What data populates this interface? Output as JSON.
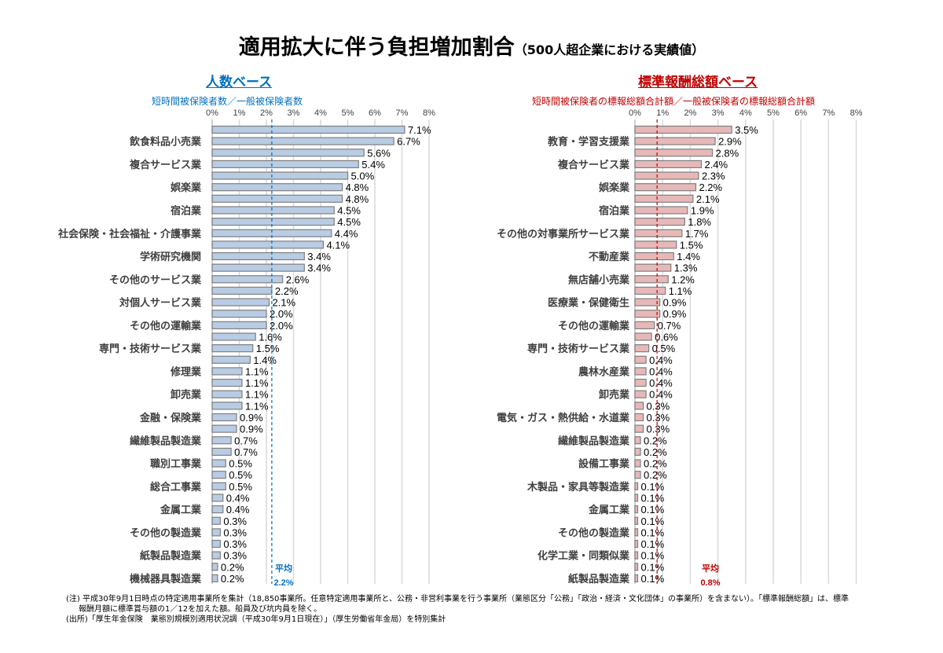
{
  "title": "適用拡大に伴う負担増加割合",
  "title_sub": "（500人超企業における実績値）",
  "chart_data": [
    {
      "type": "bar",
      "orientation": "horizontal",
      "heading": "人数ベース",
      "subtitle": "短時間被保険者数／一般被保険者数",
      "color": "#b8cce4",
      "accent": "#0070c0",
      "xlim": [
        0,
        8
      ],
      "ticks": [
        "0%",
        "1%",
        "2%",
        "3%",
        "4%",
        "5%",
        "6%",
        "7%",
        "8%"
      ],
      "grid": true,
      "category_labels": [
        "",
        "飲食料品小売業",
        "",
        "複合サービス業",
        "",
        "娯楽業",
        "",
        "宿泊業",
        "",
        "社会保険・社会福祉・介護事業",
        "",
        "学術研究機関",
        "",
        "その他のサービス業",
        "",
        "対個人サービス業",
        "",
        "その他の運輸業",
        "",
        "専門・技術サービス業",
        "",
        "修理業",
        "",
        "卸売業",
        "",
        "金融・保険業",
        "",
        "繊維製品製造業",
        "",
        "職別工事業",
        "",
        "総合工事業",
        "",
        "金属工業",
        "",
        "その他の製造業",
        "",
        "紙製品製造業",
        "",
        "機械器具製造業"
      ],
      "values": [
        7.1,
        6.7,
        5.6,
        5.4,
        5.0,
        4.8,
        4.8,
        4.5,
        4.5,
        4.4,
        4.1,
        3.4,
        3.4,
        2.6,
        2.2,
        2.1,
        2.0,
        2.0,
        1.6,
        1.5,
        1.4,
        1.1,
        1.1,
        1.1,
        1.1,
        0.9,
        0.9,
        0.7,
        0.7,
        0.5,
        0.5,
        0.5,
        0.4,
        0.4,
        0.3,
        0.3,
        0.3,
        0.3,
        0.2,
        0.2
      ],
      "average": {
        "label": "平均",
        "value": 2.2,
        "value_label": "2.2%"
      }
    },
    {
      "type": "bar",
      "orientation": "horizontal",
      "heading": "標準報酬総額ベース",
      "subtitle": "短時間被保険者の標報総額合計額／一般被保険者の標報総額合計額",
      "color": "#e6b9b8",
      "accent": "#c00000",
      "xlim": [
        0,
        8
      ],
      "ticks": [
        "0%",
        "1%",
        "2%",
        "3%",
        "4%",
        "5%",
        "6%",
        "7%",
        "8%"
      ],
      "grid": true,
      "category_labels": [
        "",
        "教育・学習支援業",
        "",
        "複合サービス業",
        "",
        "娯楽業",
        "",
        "宿泊業",
        "",
        "その他の対事業所サービス業",
        "",
        "不動産業",
        "",
        "無店舗小売業",
        "",
        "医療業・保健衛生",
        "",
        "その他の運輸業",
        "",
        "専門・技術サービス業",
        "",
        "農林水産業",
        "",
        "卸売業",
        "",
        "電気・ガス・熱供給・水道業",
        "",
        "繊維製品製造業",
        "",
        "設備工事業",
        "",
        "木製品・家具等製造業",
        "",
        "金属工業",
        "",
        "その他の製造業",
        "",
        "化学工業・同類似業",
        "",
        "紙製品製造業"
      ],
      "values": [
        3.5,
        2.9,
        2.8,
        2.4,
        2.3,
        2.2,
        2.1,
        1.9,
        1.8,
        1.7,
        1.5,
        1.4,
        1.3,
        1.2,
        1.1,
        0.9,
        0.9,
        0.7,
        0.6,
        0.5,
        0.4,
        0.4,
        0.4,
        0.4,
        0.3,
        0.3,
        0.3,
        0.2,
        0.2,
        0.2,
        0.2,
        0.1,
        0.1,
        0.1,
        0.1,
        0.1,
        0.1,
        0.1,
        0.1,
        0.1
      ],
      "average": {
        "label": "平均",
        "value": 0.8,
        "value_label": "0.8%"
      }
    }
  ],
  "notes": [
    "(注) 平成30年9月1日時点の特定適用事業所を集計（18,850事業所。任意特定適用事業所と、公務・非営利事業を行う事業所（業態区分「公務」「政治・経済・文化団体」の事業所）を含まない）。「標準報酬総額」は、標準",
    "報酬月額に標準賞与額の1／12を加えた額。船員及び坑内員を除く。",
    "(出所)「厚生年金保険　業態別規模別適用状況調（平成30年9月1日現在）」（厚生労働省年金局）を特別集計"
  ]
}
